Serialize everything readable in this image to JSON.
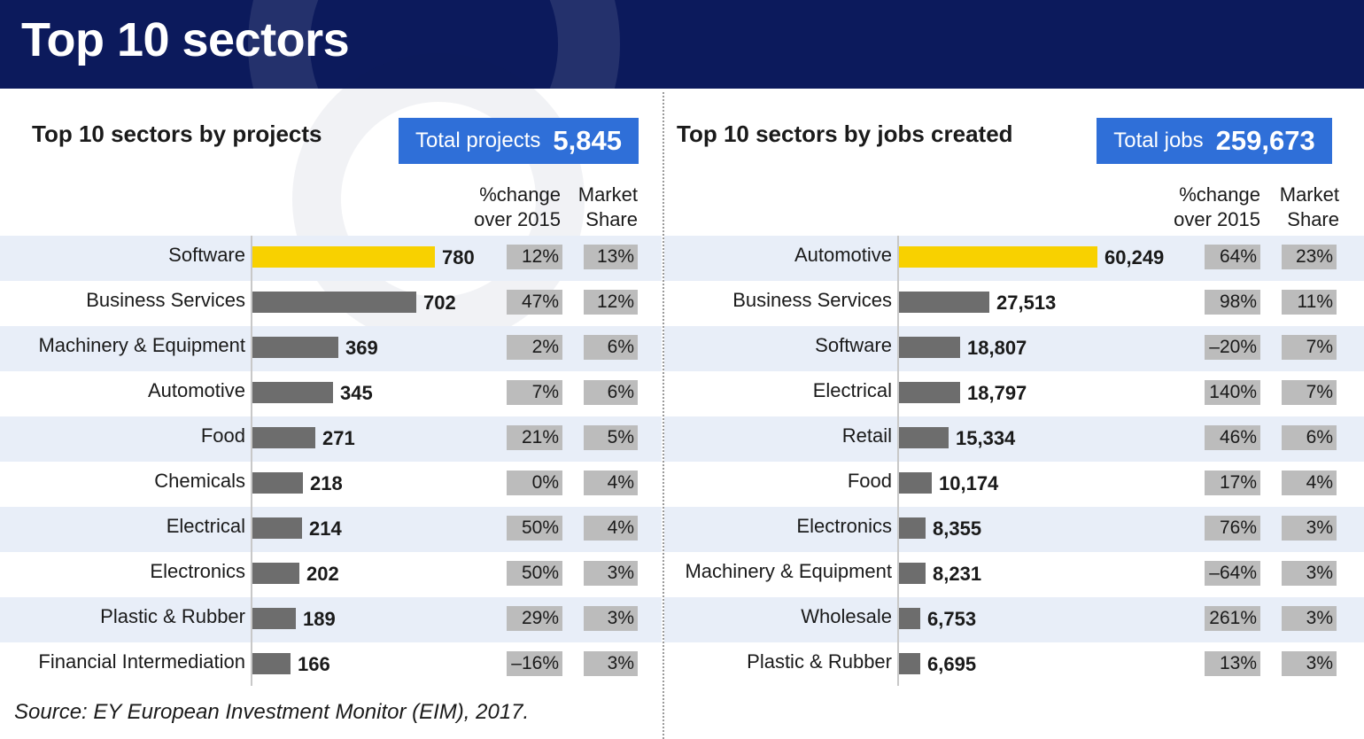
{
  "header": {
    "title": "Top 10 sectors"
  },
  "source": "Source: EY European Investment Monitor (EIM), 2017.",
  "colors": {
    "header_bg": "#0c1a5c",
    "total_box": "#2f6fd8",
    "highlight_bar": "#f8d100",
    "bar": "#6d6d6d",
    "cell": "#bcbcbc",
    "alt_row": "#e8eef8"
  },
  "chart_data": [
    {
      "type": "bar",
      "orientation": "horizontal",
      "title": "Top 10 sectors by projects",
      "total_label": "Total projects",
      "total_value": "5,845",
      "col_change": [
        "%change",
        "over 2015"
      ],
      "col_share": [
        "Market",
        "Share"
      ],
      "categories": [
        "Software",
        "Business Services",
        "Machinery & Equipment",
        "Automotive",
        "Food",
        "Chemicals",
        "Electrical",
        "Electronics",
        "Plastic & Rubber",
        "Financial Intermediation"
      ],
      "values": [
        780,
        702,
        369,
        345,
        271,
        218,
        214,
        202,
        189,
        166
      ],
      "labels": [
        "780",
        "702",
        "369",
        "345",
        "271",
        "218",
        "214",
        "202",
        "189",
        "166"
      ],
      "change": [
        "12%",
        "47%",
        "2%",
        "7%",
        "21%",
        "0%",
        "50%",
        "50%",
        "29%",
        "–16%"
      ],
      "share": [
        "13%",
        "12%",
        "6%",
        "6%",
        "5%",
        "4%",
        "4%",
        "3%",
        "3%",
        "3%"
      ],
      "highlight_index": 0
    },
    {
      "type": "bar",
      "orientation": "horizontal",
      "title": "Top 10 sectors by jobs created",
      "total_label": "Total jobs",
      "total_value": "259,673",
      "col_change": [
        "%change",
        "over 2015"
      ],
      "col_share": [
        "Market",
        "Share"
      ],
      "categories": [
        "Automotive",
        "Business Services",
        "Software",
        "Electrical",
        "Retail",
        "Food",
        "Electronics",
        "Machinery & Equipment",
        "Wholesale",
        "Plastic & Rubber"
      ],
      "values": [
        60249,
        27513,
        18807,
        18797,
        15334,
        10174,
        8355,
        8231,
        6753,
        6695
      ],
      "labels": [
        "60,249",
        "27,513",
        "18,807",
        "18,797",
        "15,334",
        "10,174",
        "8,355",
        "8,231",
        "6,753",
        "6,695"
      ],
      "change": [
        "64%",
        "98%",
        "–20%",
        "140%",
        "46%",
        "17%",
        "76%",
        "–64%",
        "261%",
        "13%"
      ],
      "share": [
        "23%",
        "11%",
        "7%",
        "7%",
        "6%",
        "4%",
        "3%",
        "3%",
        "3%",
        "3%"
      ],
      "highlight_index": 0
    }
  ]
}
